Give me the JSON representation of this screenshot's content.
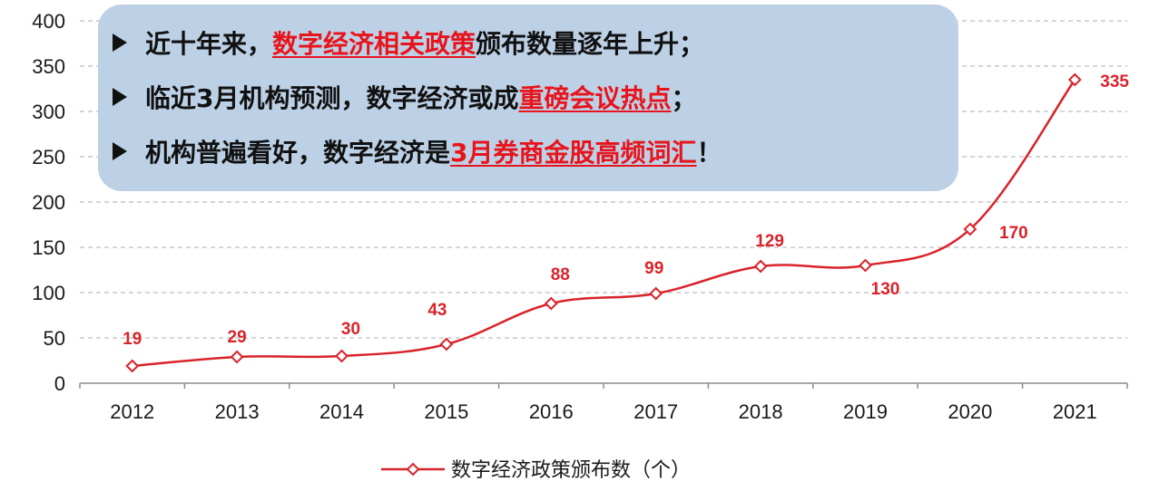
{
  "callout": {
    "lines": [
      {
        "before": "近十年来，",
        "highlight": "数字经济相关政策",
        "after": "颁布数量逐年上升；"
      },
      {
        "before": "临近3月机构预测，数字经济或成",
        "highlight": "重磅会议热点",
        "after": "；"
      },
      {
        "before": "机构普遍看好，数字经济是",
        "highlight": "3月券商金股高频词汇",
        "after": "！"
      }
    ],
    "box_color": "#bdd1e6",
    "highlight_color": "#e8141c"
  },
  "chart_data": {
    "type": "line",
    "title": "",
    "xlabel": "",
    "ylabel": "",
    "categories": [
      "2012",
      "2013",
      "2014",
      "2015",
      "2016",
      "2017",
      "2018",
      "2019",
      "2020",
      "2021"
    ],
    "series": [
      {
        "name": "数字经济政策颁布数（个）",
        "values": [
          19,
          29,
          30,
          43,
          88,
          99,
          129,
          130,
          170,
          335
        ],
        "color": "#d9232a",
        "marker": "diamond-open",
        "smooth": true,
        "data_labels": true
      }
    ],
    "ylim": [
      0,
      400
    ],
    "yticks": [
      0,
      50,
      100,
      150,
      200,
      250,
      300,
      350,
      400
    ],
    "grid": "horizontal-dashed",
    "legend": "bottom-center"
  }
}
